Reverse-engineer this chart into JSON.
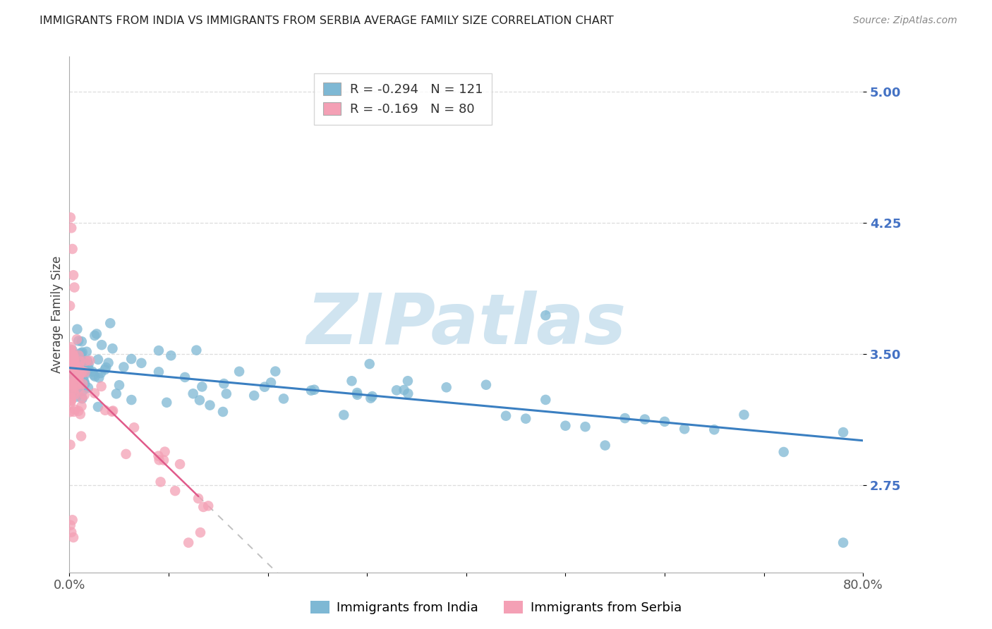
{
  "title": "IMMIGRANTS FROM INDIA VS IMMIGRANTS FROM SERBIA AVERAGE FAMILY SIZE CORRELATION CHART",
  "source": "Source: ZipAtlas.com",
  "ylabel": "Average Family Size",
  "xlim": [
    0.0,
    0.8
  ],
  "ylim": [
    2.25,
    5.2
  ],
  "yticks": [
    2.75,
    3.5,
    4.25,
    5.0
  ],
  "xtick_positions": [
    0.0,
    0.1,
    0.2,
    0.3,
    0.4,
    0.5,
    0.6,
    0.7,
    0.8
  ],
  "xticklabels": [
    "0.0%",
    "",
    "",
    "",
    "",
    "",
    "",
    "",
    "80.0%"
  ],
  "india_color": "#7eb8d4",
  "serbia_color": "#f4a0b5",
  "india_line_color": "#3a7fc1",
  "serbia_line_color": "#e05a8a",
  "india_R": -0.294,
  "india_N": 121,
  "serbia_R": -0.169,
  "serbia_N": 80,
  "india_intercept": 3.42,
  "india_slope": -0.52,
  "serbia_intercept": 3.4,
  "serbia_slope": -5.5,
  "serbia_line_end_x": 0.13,
  "watermark": "ZIPatlas",
  "watermark_color": "#d0e4f0",
  "legend_label_india": "Immigrants from India",
  "legend_label_serbia": "Immigrants from Serbia",
  "grid_color": "#dddddd",
  "ytick_color": "#4472c4",
  "title_fontsize": 11.5,
  "source_fontsize": 10,
  "tick_fontsize": 13,
  "ylabel_fontsize": 12
}
